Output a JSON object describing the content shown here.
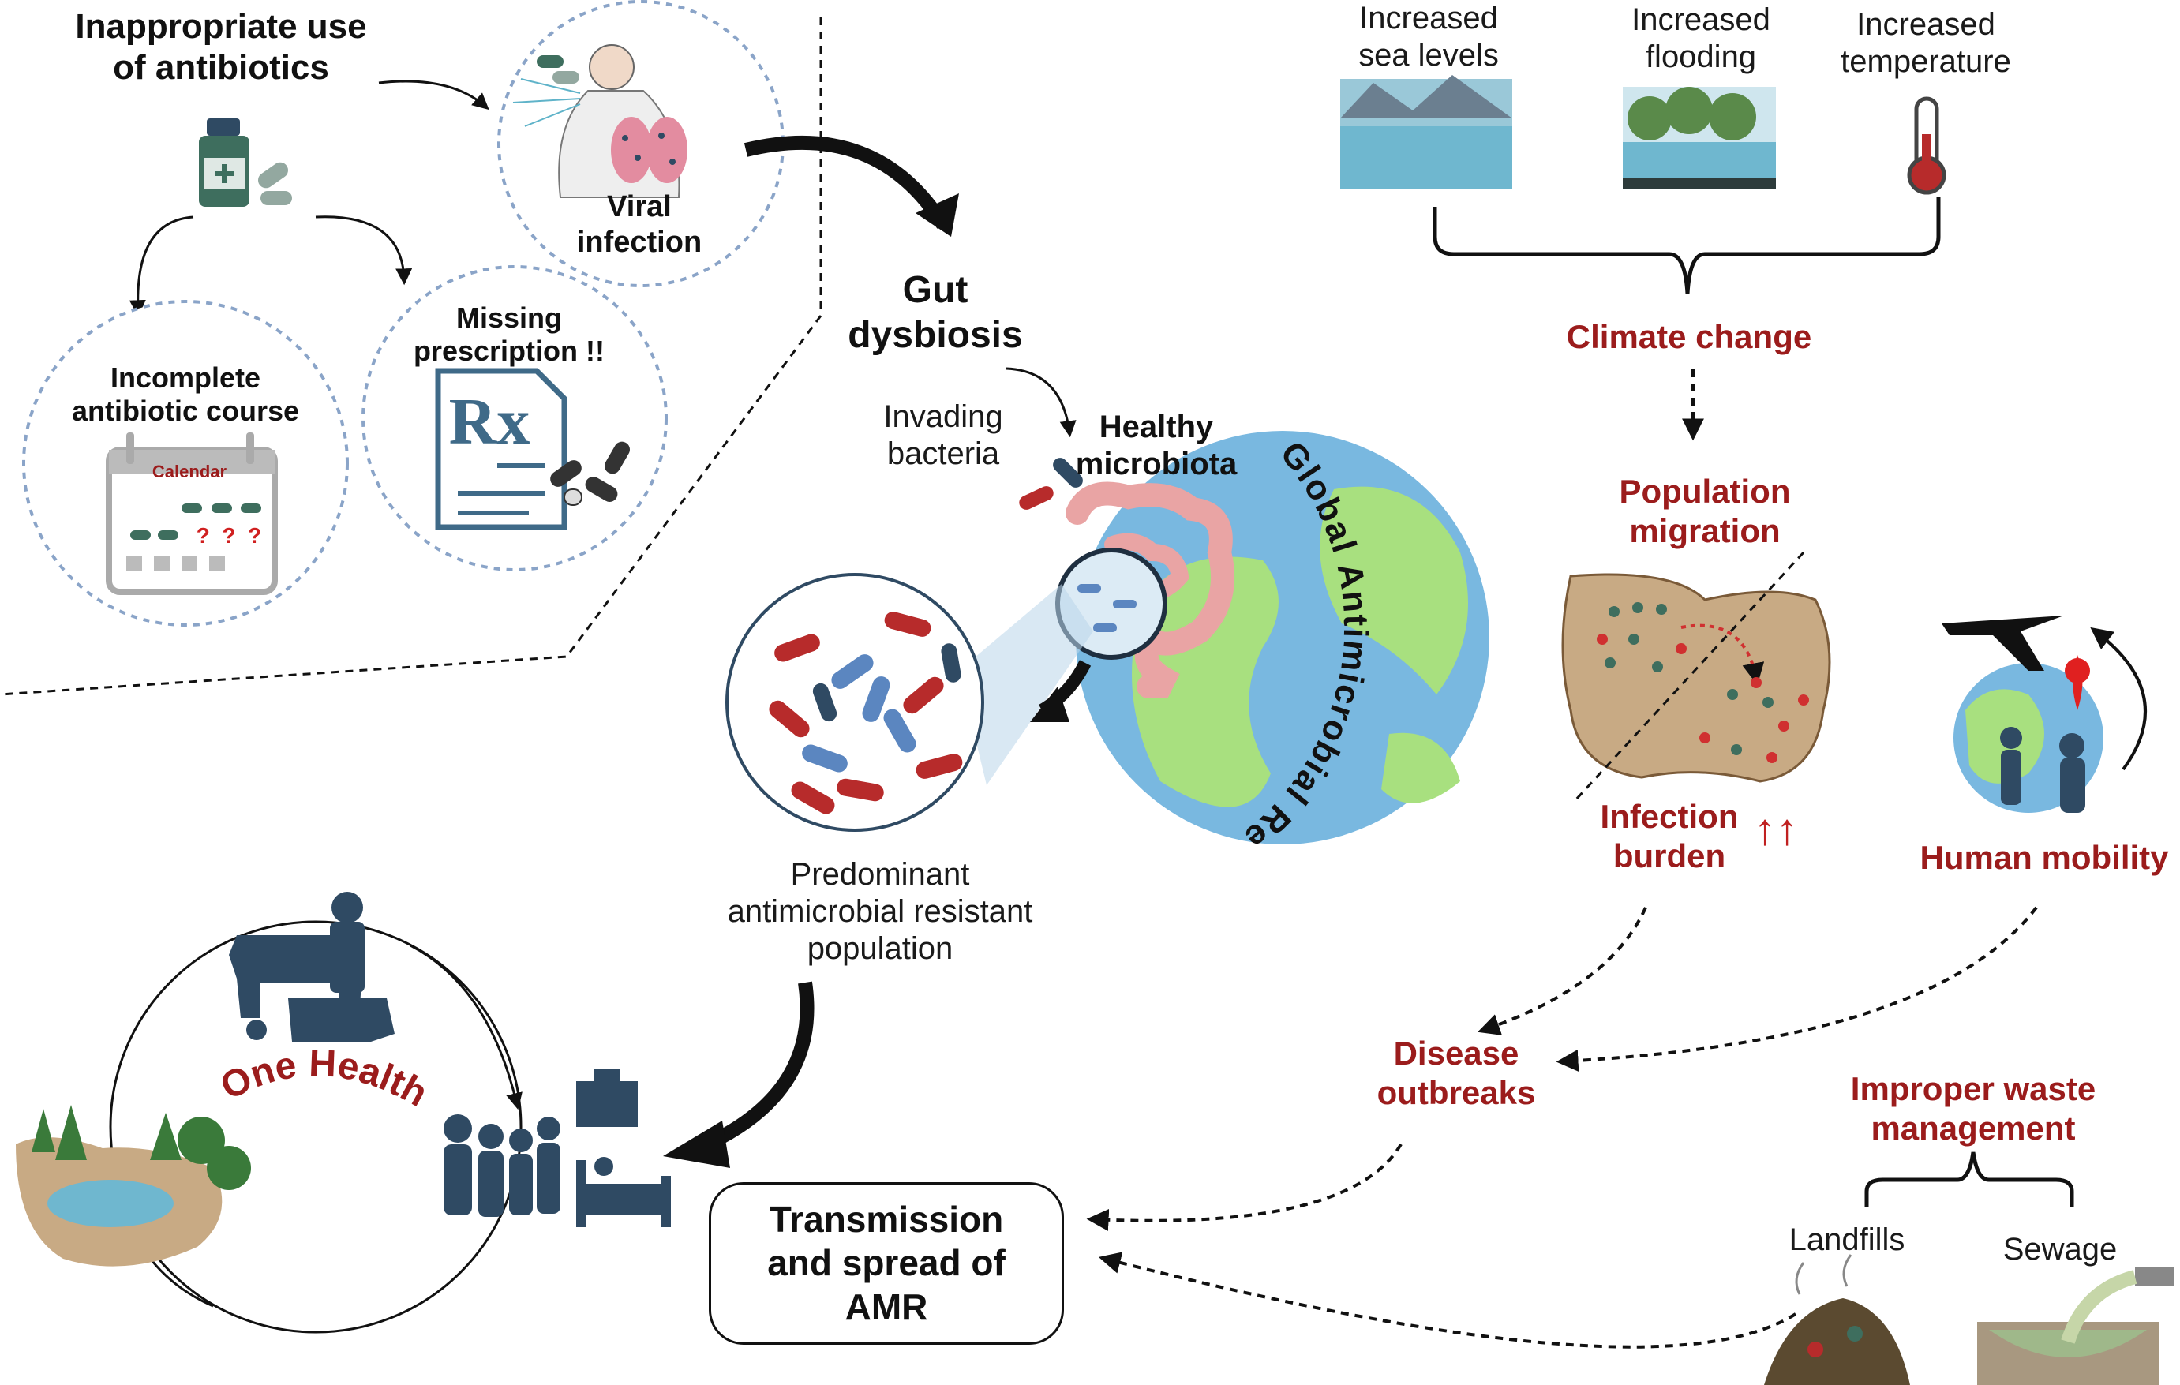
{
  "colors": {
    "accent_red": "#9b1c1c",
    "navy": "#2f4a63",
    "water_blue": "#6fb7cf",
    "globe_green": "#a8e07f",
    "globe_blue": "#79b8e0",
    "circle_dash": "#8aa4c8",
    "map_tan": "#c8aa84"
  },
  "antibiotics": {
    "title_line1": "Inappropriate use",
    "title_line2": "of antibiotics",
    "viral_line1": "Viral",
    "viral_line2": "infection",
    "incomplete_line1": "Incomplete",
    "incomplete_line2": "antibiotic course",
    "calendar_label": "Calendar",
    "missing_line1": "Missing",
    "missing_line2": "prescription !!",
    "rx_symbol": "Rx",
    "question_mark": "?"
  },
  "gut": {
    "dysbiosis_line1": "Gut",
    "dysbiosis_line2": "dysbiosis",
    "invading_line1": "Invading",
    "invading_line2": "bacteria",
    "healthy_line1": "Healthy",
    "healthy_line2": "microbiota",
    "resistant_line1": "Predominant",
    "resistant_line2": "antimicrobial resistant",
    "resistant_line3": "population"
  },
  "globe": {
    "arc_title": "Global Antimicrobial Resistance Burden"
  },
  "climate": {
    "sea_line1": "Increased",
    "sea_line2": "sea levels",
    "flood_line1": "Increased",
    "flood_line2": "flooding",
    "temp_line1": "Increased",
    "temp_line2": "temperature",
    "climate_change": "Climate change",
    "migration_line1": "Population",
    "migration_line2": "migration",
    "infection_line1": "Infection",
    "infection_line2": "burden",
    "up_arrows": "↑↑",
    "human_mobility": "Human mobility"
  },
  "outbreaks": {
    "line1": "Disease",
    "line2": "outbreaks"
  },
  "waste": {
    "line1": "Improper waste",
    "line2": "management",
    "landfills": "Landfills",
    "sewage": "Sewage"
  },
  "one_health": {
    "title": "One Health"
  },
  "amr": {
    "line1": "Transmission",
    "line2": "and spread of",
    "line3": "AMR"
  }
}
